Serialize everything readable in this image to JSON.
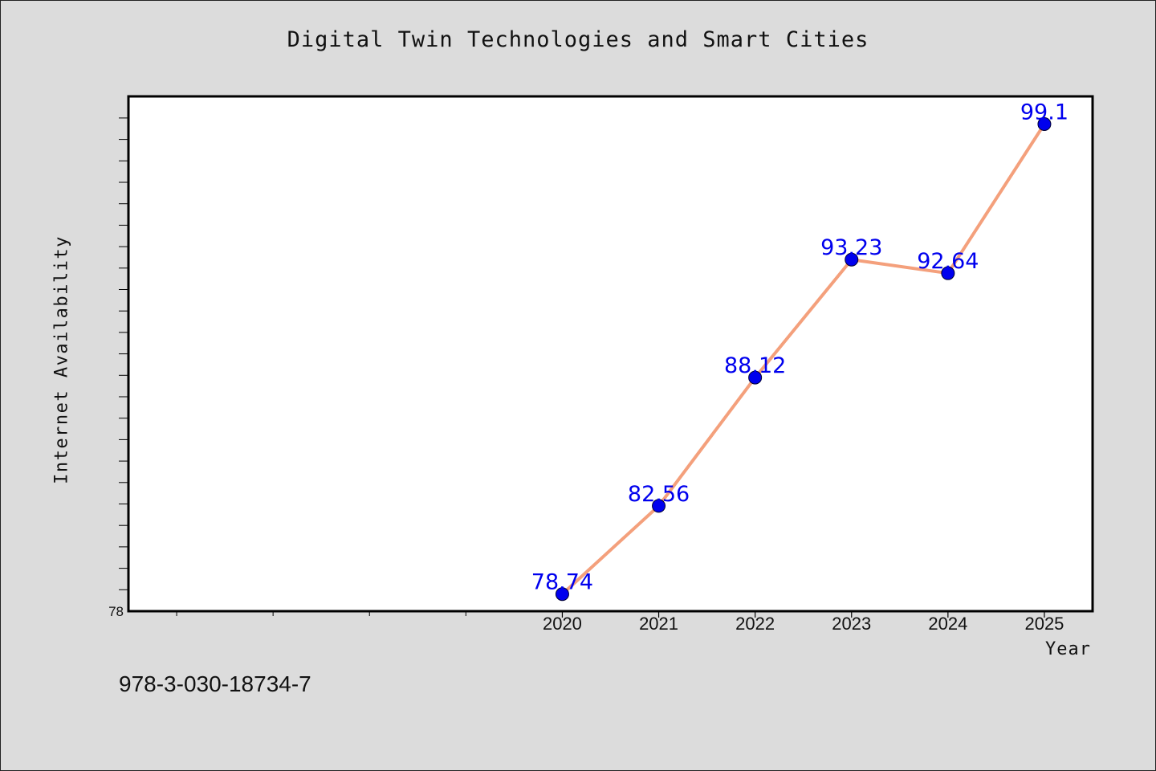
{
  "chart_data": {
    "type": "line",
    "title": "Digital Twin Technologies and Smart Cities",
    "xlabel": "Year",
    "ylabel": "Internet Availability",
    "categories": [
      "2020",
      "2021",
      "2022",
      "2023",
      "2024",
      "2025"
    ],
    "series": [
      {
        "values": [
          78.74,
          82.56,
          88.12,
          93.23,
          92.64,
          99.1
        ],
        "point_labels": [
          "78.74",
          "82.56",
          "88.12",
          "93.23",
          "92.64",
          "99.1"
        ],
        "line_color": "#f4a07c",
        "marker_color": "#0000ee",
        "label_color": "#0000ee"
      }
    ],
    "y_tick_labels": [
      "78"
    ],
    "ylim": [
      78,
      100.3
    ],
    "xlim": [
      2015.5,
      2025.5
    ],
    "grid": false,
    "legend": "none"
  },
  "footer": {
    "isbn": "978-3-030-18734-7"
  },
  "colors": {
    "background": "#dcdcdc",
    "plot_background": "#ffffff",
    "axis": "#000000"
  }
}
